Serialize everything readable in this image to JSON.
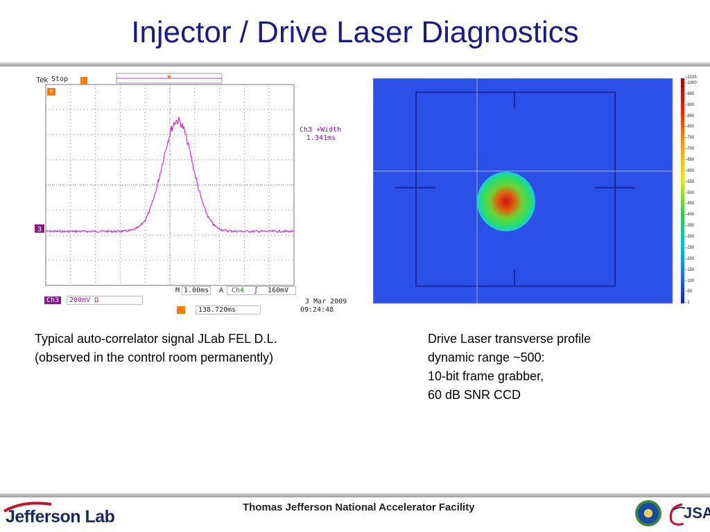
{
  "title": "Injector / Drive Laser Diagnostics",
  "scope": {
    "brand": "Tek",
    "state": "Stop",
    "trigger_marker": "T",
    "channel_marker": "3",
    "measurement_name": "Ch3 +Width",
    "measurement_value": "1.341ms",
    "channel": "Ch3",
    "volts_per_div": "200mV",
    "impedance_symbol": "Ω",
    "timebase_label": "M",
    "timebase": "1.00ms",
    "trigger_mode": "A",
    "trigger_channel": "Ch4",
    "trigger_slope": "ʃ",
    "trigger_level": "160mV",
    "trigger_position_marker": "T→▼",
    "trigger_position": "138.720ms",
    "date": "3 Mar  2009",
    "time": "09:24:48",
    "trace_color": "#e000d8"
  },
  "profile": {
    "colorbar_ticks": [
      "1025",
      "1000",
      "950",
      "900",
      "850",
      "800",
      "750",
      "700",
      "650",
      "600",
      "550",
      "500",
      "450",
      "400",
      "350",
      "300",
      "250",
      "200",
      "150",
      "100",
      "50",
      "1"
    ],
    "background_color": "#2a50e8"
  },
  "captions": {
    "left": [
      "Typical auto-correlator signal JLab FEL D.L.",
      "(observed in the control room permanently)"
    ],
    "right": [
      "Drive Laser transverse profile",
      "dynamic range ~500:",
      "10-bit frame grabber,",
      "60 dB SNR CCD"
    ]
  },
  "footer": {
    "logo": "Jefferson Lab",
    "facility": "Thomas Jefferson National Accelerator Facility",
    "partner": "JSA"
  }
}
